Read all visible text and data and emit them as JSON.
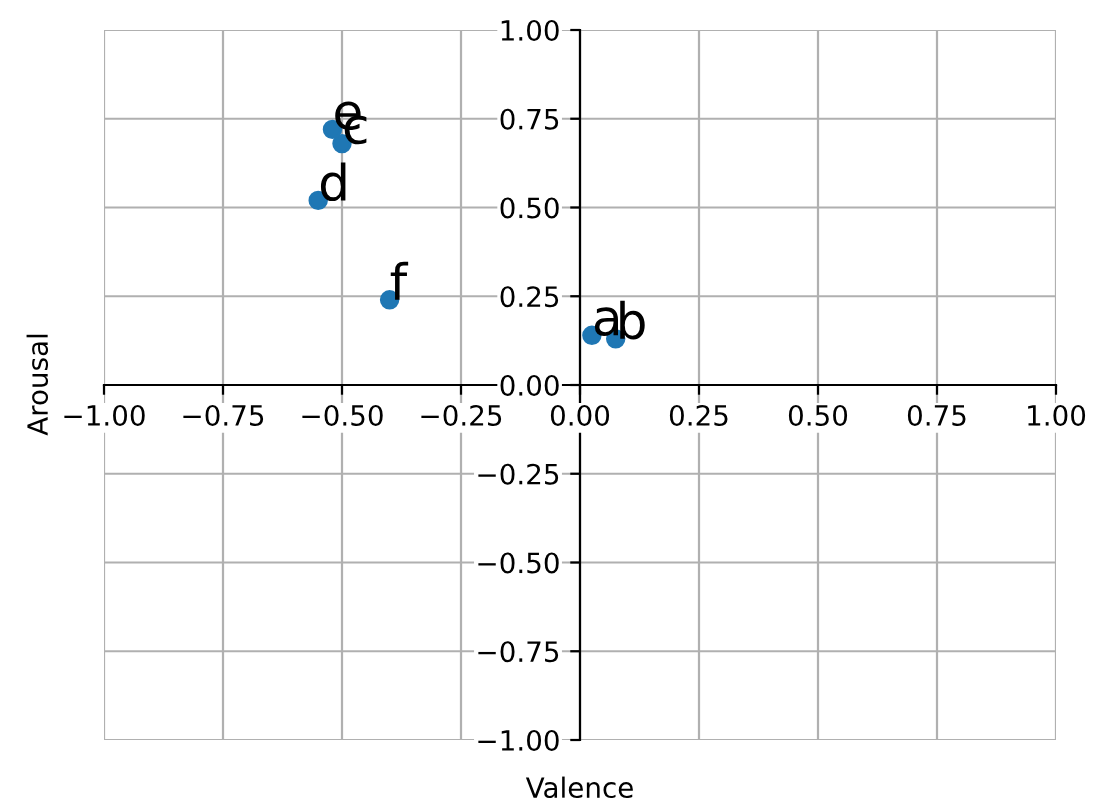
{
  "chart_data": {
    "type": "scatter",
    "xlabel": "Valence",
    "ylabel": "Arousal",
    "x": [
      0.025,
      0.075,
      -0.5,
      -0.55,
      -0.52,
      -0.4
    ],
    "values": [
      0.14,
      0.13,
      0.68,
      0.52,
      0.72,
      0.24
    ],
    "color": "#1f77b4",
    "marker": "circle",
    "grid": true,
    "xlim": [
      -1,
      1
    ],
    "ylim": [
      -1,
      1
    ],
    "xticks": [
      {
        "value": -1,
        "label": "−1.00"
      },
      {
        "value": -0.75,
        "label": "−0.75"
      },
      {
        "value": -0.5,
        "label": "−0.50"
      },
      {
        "value": -0.25,
        "label": "−0.25"
      },
      {
        "value": 0,
        "label": "0.00"
      },
      {
        "value": 0.25,
        "label": "0.25"
      },
      {
        "value": 0.5,
        "label": "0.50"
      },
      {
        "value": 0.75,
        "label": "0.75"
      },
      {
        "value": 1,
        "label": "1.00"
      }
    ],
    "yticks": [
      {
        "value": -1,
        "label": "−1.00"
      },
      {
        "value": -0.75,
        "label": "−0.75"
      },
      {
        "value": -0.5,
        "label": "−0.50"
      },
      {
        "value": -0.25,
        "label": "−0.25"
      },
      {
        "value": 0,
        "label": "0.00"
      },
      {
        "value": 0.25,
        "label": "0.25"
      },
      {
        "value": 0.5,
        "label": "0.50"
      },
      {
        "value": 0.75,
        "label": "0.75"
      },
      {
        "value": 1,
        "label": "1.00"
      }
    ],
    "annotations": [
      {
        "text": "a",
        "x": 0.025,
        "y": 0.14
      },
      {
        "text": "b",
        "x": 0.075,
        "y": 0.13
      },
      {
        "text": "c",
        "x": -0.5,
        "y": 0.68
      },
      {
        "text": "d",
        "x": -0.55,
        "y": 0.52
      },
      {
        "text": "e",
        "x": -0.52,
        "y": 0.72
      },
      {
        "text": "f",
        "x": -0.4,
        "y": 0.24
      }
    ]
  }
}
